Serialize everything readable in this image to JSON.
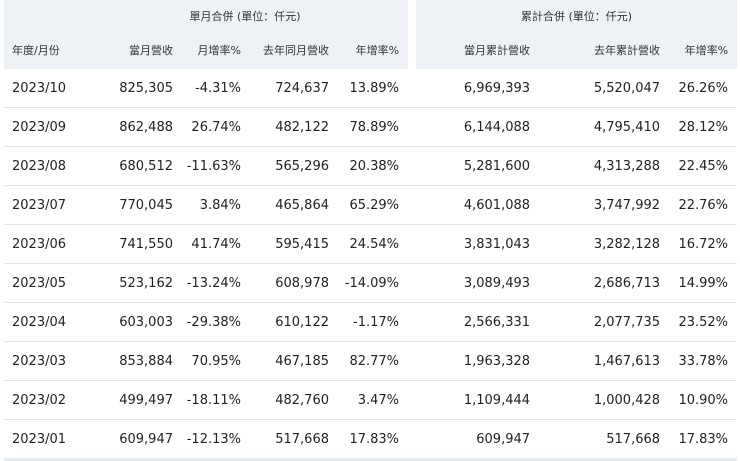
{
  "group_headers": {
    "monthly": "單月合併 (單位：仟元)",
    "cumulative": "累計合併 (單位：仟元)"
  },
  "columns": {
    "month": "年度/月份",
    "monthly_revenue": "當月營收",
    "mom": "月增率%",
    "last_year_monthly": "去年同月營收",
    "yoy": "年增率%",
    "cum_revenue": "當月累計營收",
    "last_year_cum": "去年累計營收",
    "cum_yoy": "年增率%"
  },
  "rows": [
    {
      "month": "2023/10",
      "rev": "825,305",
      "mom": "-4.31%",
      "ly": "724,637",
      "yoy": "13.89%",
      "cum": "6,969,393",
      "lycum": "5,520,047",
      "cumyoy": "26.26%"
    },
    {
      "month": "2023/09",
      "rev": "862,488",
      "mom": "26.74%",
      "ly": "482,122",
      "yoy": "78.89%",
      "cum": "6,144,088",
      "lycum": "4,795,410",
      "cumyoy": "28.12%"
    },
    {
      "month": "2023/08",
      "rev": "680,512",
      "mom": "-11.63%",
      "ly": "565,296",
      "yoy": "20.38%",
      "cum": "5,281,600",
      "lycum": "4,313,288",
      "cumyoy": "22.45%"
    },
    {
      "month": "2023/07",
      "rev": "770,045",
      "mom": "3.84%",
      "ly": "465,864",
      "yoy": "65.29%",
      "cum": "4,601,088",
      "lycum": "3,747,992",
      "cumyoy": "22.76%"
    },
    {
      "month": "2023/06",
      "rev": "741,550",
      "mom": "41.74%",
      "ly": "595,415",
      "yoy": "24.54%",
      "cum": "3,831,043",
      "lycum": "3,282,128",
      "cumyoy": "16.72%"
    },
    {
      "month": "2023/05",
      "rev": "523,162",
      "mom": "-13.24%",
      "ly": "608,978",
      "yoy": "-14.09%",
      "cum": "3,089,493",
      "lycum": "2,686,713",
      "cumyoy": "14.99%"
    },
    {
      "month": "2023/04",
      "rev": "603,003",
      "mom": "-29.38%",
      "ly": "610,122",
      "yoy": "-1.17%",
      "cum": "2,566,331",
      "lycum": "2,077,735",
      "cumyoy": "23.52%"
    },
    {
      "month": "2023/03",
      "rev": "853,884",
      "mom": "70.95%",
      "ly": "467,185",
      "yoy": "82.77%",
      "cum": "1,963,328",
      "lycum": "1,467,613",
      "cumyoy": "33.78%"
    },
    {
      "month": "2023/02",
      "rev": "499,497",
      "mom": "-18.11%",
      "ly": "482,760",
      "yoy": "3.47%",
      "cum": "1,109,444",
      "lycum": "1,000,428",
      "cumyoy": "10.90%"
    },
    {
      "month": "2023/01",
      "rev": "609,947",
      "mom": "-12.13%",
      "ly": "517,668",
      "yoy": "17.83%",
      "cum": "609,947",
      "lycum": "517,668",
      "cumyoy": "17.83%"
    }
  ]
}
